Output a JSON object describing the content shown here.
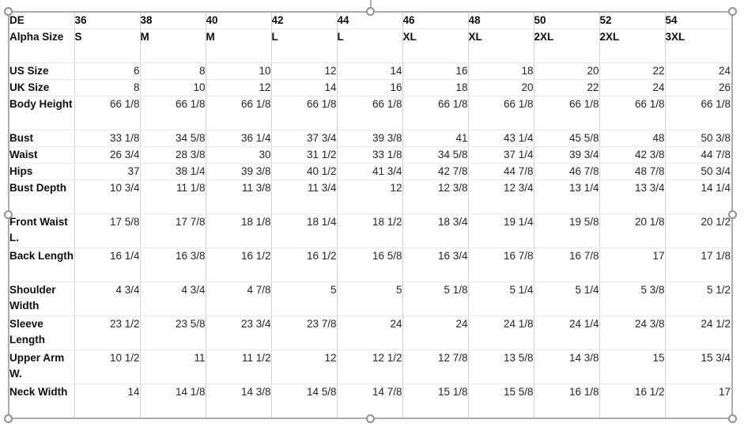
{
  "colors": {
    "selection_border": "#a9acb0",
    "handle_border": "#8f9296",
    "grid_vertical": "#cdd3d9",
    "grid_horizontal": "#e6e9ec",
    "text": "#1c1c1c"
  },
  "table": {
    "corner_label": "DE",
    "size_headers": [
      "36",
      "38",
      "40",
      "42",
      "44",
      "46",
      "48",
      "50",
      "52",
      "54"
    ],
    "rows": [
      {
        "label": "Alpha Size",
        "values": [
          "S",
          "M",
          "M",
          "L",
          "L",
          "XL",
          "XL",
          "2XL",
          "2XL",
          "3XL"
        ]
      },
      {
        "label": "US Size",
        "values": [
          "6",
          "8",
          "10",
          "12",
          "14",
          "16",
          "18",
          "20",
          "22",
          "24"
        ]
      },
      {
        "label": "UK Size",
        "values": [
          "8",
          "10",
          "12",
          "14",
          "16",
          "18",
          "20",
          "22",
          "24",
          "26"
        ]
      },
      {
        "label": "Body Height",
        "values": [
          "66 1/8",
          "66 1/8",
          "66 1/8",
          "66 1/8",
          "66 1/8",
          "66 1/8",
          "66 1/8",
          "66 1/8",
          "66 1/8",
          "66 1/8"
        ]
      },
      {
        "label": "Bust",
        "values": [
          "33 1/8",
          "34 5/8",
          "36 1/4",
          "37 3/4",
          "39 3/8",
          "41",
          "43 1/4",
          "45 5/8",
          "48",
          "50 3/8"
        ]
      },
      {
        "label": "Waist",
        "values": [
          "26 3/4",
          "28 3/8",
          "30",
          "31 1/2",
          "33 1/8",
          "34 5/8",
          "37 1/4",
          "39 3/4",
          "42 3/8",
          "44 7/8"
        ]
      },
      {
        "label": "Hips",
        "values": [
          "37",
          "38 1/4",
          "39 3/8",
          "40 1/2",
          "41 3/4",
          "42 7/8",
          "44 7/8",
          "46 7/8",
          "48 7/8",
          "50 3/4"
        ]
      },
      {
        "label": "Bust Depth",
        "values": [
          "10 3/4",
          "11 1/8",
          "11 3/8",
          "11 3/4",
          "12",
          "12 3/8",
          "12 3/4",
          "13 1/4",
          "13 3/4",
          "14 1/4"
        ]
      },
      {
        "label": "Front Waist L.",
        "values": [
          "17 5/8",
          "17 7/8",
          "18 1/8",
          "18 1/4",
          "18 1/2",
          "18 3/4",
          "19 1/4",
          "19 5/8",
          "20 1/8",
          "20 1/2"
        ]
      },
      {
        "label": "Back Length",
        "values": [
          "16 1/4",
          "16 3/8",
          "16 1/2",
          "16 1/2",
          "16 5/8",
          "16 3/4",
          "16 7/8",
          "16 7/8",
          "17",
          "17 1/8"
        ]
      },
      {
        "label": "Shoulder Width",
        "values": [
          "4 3/4",
          "4 3/4",
          "4 7/8",
          "5",
          "5",
          "5 1/8",
          "5 1/4",
          "5 1/4",
          "5 3/8",
          "5 1/2"
        ]
      },
      {
        "label": "Sleeve Length",
        "values": [
          "23 1/2",
          "23 5/8",
          "23 3/4",
          "23 7/8",
          "24",
          "24",
          "24 1/8",
          "24 1/4",
          "24 3/8",
          "24 1/2"
        ]
      },
      {
        "label": "Upper Arm W.",
        "values": [
          "10 1/2",
          "11",
          "11 1/2",
          "12",
          "12 1/2",
          "12 7/8",
          "13 5/8",
          "14 3/8",
          "15",
          "15 3/4"
        ]
      },
      {
        "label": "Neck Width",
        "values": [
          "14",
          "14 1/8",
          "14 3/8",
          "14 5/8",
          "14 7/8",
          "15 1/8",
          "15 5/8",
          "16 1/8",
          "16 1/2",
          "17"
        ]
      }
    ]
  }
}
